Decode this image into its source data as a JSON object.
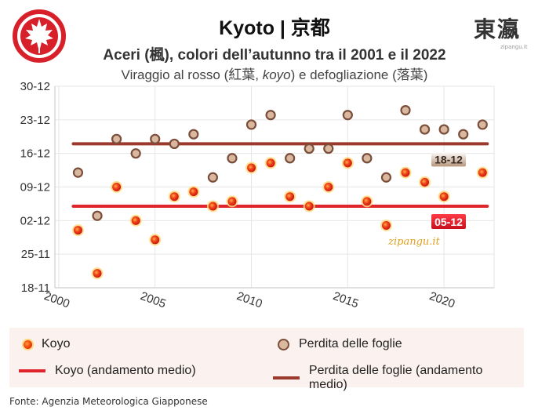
{
  "header": {
    "title": "Kyoto | 京都",
    "subtitle": "Aceri (楓), colori dell’autunno tra il 2001 e il 2022",
    "subtitle2_pre": "Viraggio al rosso (紅葉, ",
    "subtitle2_italic": "koyo",
    "subtitle2_post": ") e defogliazione (落葉)"
  },
  "logo_icon": "maple-leaf-icon",
  "seal": {
    "kanji": "東瀛",
    "small": "zipangu.it"
  },
  "watermark": "zipangu.it",
  "legend": {
    "koyo": "Koyo",
    "perdita": "Perdita delle foglie",
    "koyo_avg": "Koyo (andamento medio)",
    "perdita_avg": "Perdita delle foglie (andamento medio)"
  },
  "source": "Fonte: Agenzia Meteorologica Giapponese",
  "colors": {
    "koyo": "#e0242b",
    "perdita_line": "#9b3a2c",
    "perdita_fill": "#d9b89f",
    "perdita_edge": "#7a4e3a",
    "grid": "#e6e6e6"
  },
  "chart_data": {
    "type": "scatter",
    "x_ticks": [
      2000,
      2005,
      2010,
      2015,
      2020
    ],
    "xlim": [
      1999.8,
      2022.6
    ],
    "y_unit": "date (day-month)",
    "y_ticks": [
      "18-11",
      "25-11",
      "02-12",
      "09-12",
      "16-12",
      "23-12",
      "30-12"
    ],
    "ylim": [
      "18-11",
      "30-12"
    ],
    "series": [
      {
        "name": "Koyo",
        "points": [
          {
            "x": 2001,
            "y": "30-11"
          },
          {
            "x": 2002,
            "y": "21-11"
          },
          {
            "x": 2003,
            "y": "09-12"
          },
          {
            "x": 2004,
            "y": "02-12"
          },
          {
            "x": 2005,
            "y": "28-11"
          },
          {
            "x": 2006,
            "y": "07-12"
          },
          {
            "x": 2007,
            "y": "08-12"
          },
          {
            "x": 2008,
            "y": "05-12"
          },
          {
            "x": 2009,
            "y": "06-12"
          },
          {
            "x": 2010,
            "y": "13-12"
          },
          {
            "x": 2011,
            "y": "14-12"
          },
          {
            "x": 2012,
            "y": "07-12"
          },
          {
            "x": 2013,
            "y": "05-12"
          },
          {
            "x": 2014,
            "y": "09-12"
          },
          {
            "x": 2015,
            "y": "14-12"
          },
          {
            "x": 2016,
            "y": "06-12"
          },
          {
            "x": 2017,
            "y": "01-12"
          },
          {
            "x": 2018,
            "y": "12-12"
          },
          {
            "x": 2019,
            "y": "10-12"
          },
          {
            "x": 2020,
            "y": "07-12"
          },
          {
            "x": 2022,
            "y": "12-12"
          }
        ]
      },
      {
        "name": "Perdita delle foglie",
        "points": [
          {
            "x": 2001,
            "y": "12-12"
          },
          {
            "x": 2002,
            "y": "03-12"
          },
          {
            "x": 2003,
            "y": "19-12"
          },
          {
            "x": 2004,
            "y": "16-12"
          },
          {
            "x": 2005,
            "y": "19-12"
          },
          {
            "x": 2006,
            "y": "18-12"
          },
          {
            "x": 2007,
            "y": "20-12"
          },
          {
            "x": 2008,
            "y": "11-12"
          },
          {
            "x": 2009,
            "y": "15-12"
          },
          {
            "x": 2010,
            "y": "22-12"
          },
          {
            "x": 2011,
            "y": "24-12"
          },
          {
            "x": 2012,
            "y": "15-12"
          },
          {
            "x": 2013,
            "y": "17-12"
          },
          {
            "x": 2014,
            "y": "17-12"
          },
          {
            "x": 2015,
            "y": "24-12"
          },
          {
            "x": 2016,
            "y": "15-12"
          },
          {
            "x": 2017,
            "y": "11-12"
          },
          {
            "x": 2018,
            "y": "25-12"
          },
          {
            "x": 2019,
            "y": "21-12"
          },
          {
            "x": 2020,
            "y": "21-12"
          },
          {
            "x": 2021,
            "y": "20-12"
          },
          {
            "x": 2022,
            "y": "22-12"
          }
        ]
      }
    ],
    "averages": [
      {
        "name": "Koyo (andamento medio)",
        "y": "05-12",
        "label": "05-12"
      },
      {
        "name": "Perdita delle foglie (andamento medio)",
        "y": "18-12",
        "label": "18-12"
      }
    ],
    "grid": true,
    "legend_position": "bottom"
  }
}
